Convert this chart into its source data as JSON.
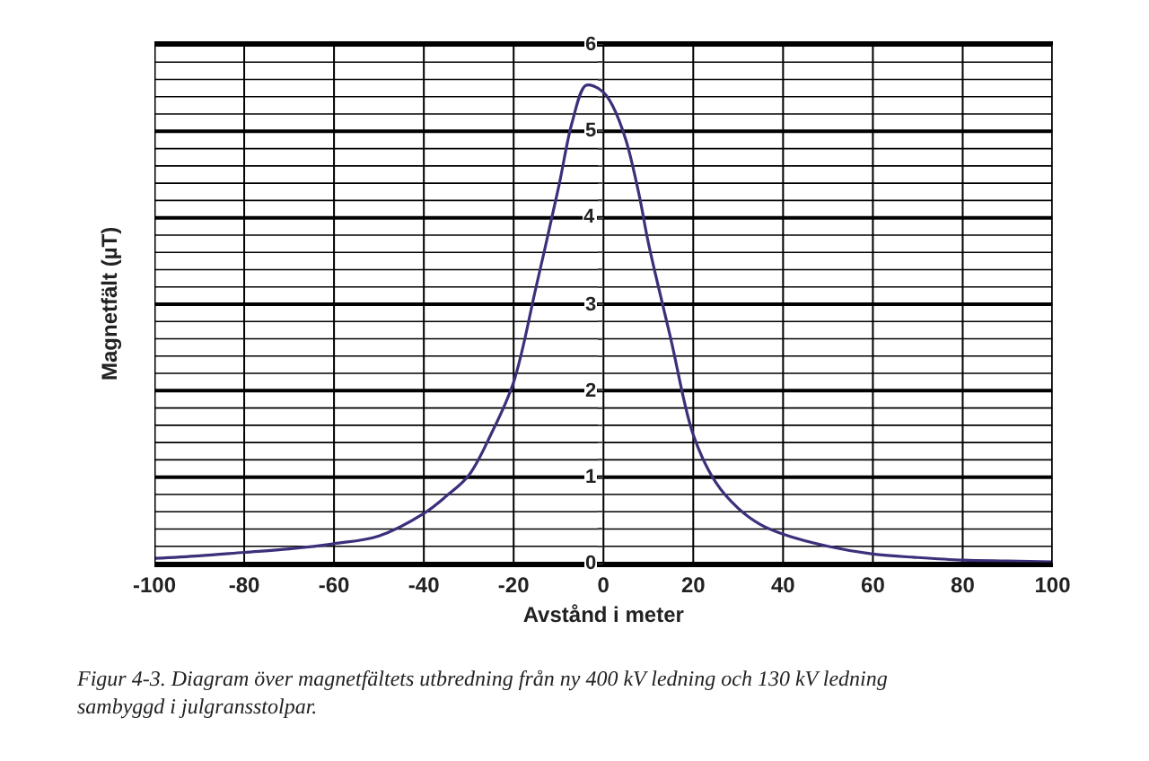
{
  "chart_data": {
    "type": "line",
    "xlabel": "Avstånd i meter",
    "ylabel": "Magnetfält (µT)",
    "annotations": [
      "Figur 4-3. Diagram över magnetfältets utbredning från ny 400 kV ledning och 130 kV ledning sambyggd i julgransstolpar."
    ],
    "x": [
      -100,
      -90,
      -80,
      -70,
      -60,
      -50,
      -40,
      -35,
      -30,
      -25,
      -20,
      -15,
      -10,
      -7,
      -4,
      -2,
      0,
      2,
      5,
      8,
      10,
      15,
      20,
      25,
      30,
      35,
      40,
      50,
      60,
      70,
      80,
      90,
      100
    ],
    "series": [
      {
        "color": "#3d2f7a",
        "values": [
          0.06,
          0.09,
          0.13,
          0.17,
          0.23,
          0.32,
          0.58,
          0.78,
          1.02,
          1.5,
          2.1,
          3.2,
          4.35,
          5.1,
          5.53,
          5.52,
          5.45,
          5.3,
          4.9,
          4.25,
          3.71,
          2.6,
          1.49,
          0.94,
          0.64,
          0.45,
          0.34,
          0.2,
          0.11,
          0.07,
          0.04,
          0.03,
          0.02
        ]
      }
    ],
    "xlim": [
      -100,
      100
    ],
    "xticks": [
      -100,
      -80,
      -60,
      -40,
      -20,
      0,
      20,
      40,
      60,
      80,
      100
    ],
    "ylim": [
      0,
      6
    ],
    "yticks": [
      0,
      {
        "value": 0.2,
        "label": null
      },
      {
        "value": 0.4,
        "label": null
      },
      {
        "value": 0.6,
        "label": null
      },
      {
        "value": 0.8,
        "label": null
      },
      1,
      {
        "value": 1.2,
        "label": null
      },
      {
        "value": 1.4,
        "label": null
      },
      {
        "value": 1.6,
        "label": null
      },
      {
        "value": 1.8,
        "label": null
      },
      2,
      {
        "value": 2.2,
        "label": null
      },
      {
        "value": 2.4,
        "label": null
      },
      {
        "value": 2.6,
        "label": null
      },
      {
        "value": 2.8,
        "label": null
      },
      3,
      {
        "value": 3.2,
        "label": null
      },
      {
        "value": 3.4,
        "label": null
      },
      {
        "value": 3.6,
        "label": null
      },
      {
        "value": 3.8,
        "label": null
      },
      4,
      {
        "value": 4.2,
        "label": null
      },
      {
        "value": 4.4,
        "label": null
      },
      {
        "value": 4.6,
        "label": null
      },
      {
        "value": 4.8,
        "label": null
      },
      5,
      {
        "value": 5.2,
        "label": null
      },
      {
        "value": 5.4,
        "label": null
      },
      {
        "value": 5.6,
        "label": null
      },
      {
        "value": 5.8,
        "label": null
      },
      6
    ],
    "grid": true,
    "marker": "none",
    "line_style": "solid"
  }
}
